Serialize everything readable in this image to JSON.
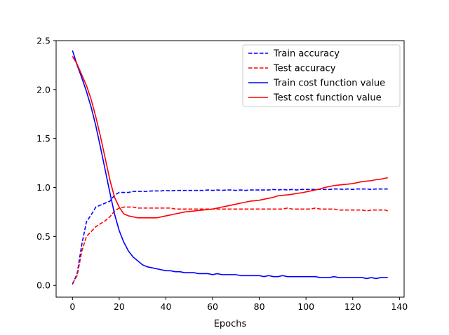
{
  "chart_data": {
    "type": "line",
    "title": "",
    "xlabel": "Epochs",
    "ylabel": "",
    "xlim": [
      -7,
      142
    ],
    "ylim": [
      -0.12,
      2.5
    ],
    "xticks": [
      0,
      20,
      40,
      60,
      80,
      100,
      120,
      140
    ],
    "xtick_labels": [
      "0",
      "20",
      "40",
      "60",
      "80",
      "100",
      "120",
      "140"
    ],
    "yticks": [
      0.0,
      0.5,
      1.0,
      1.5,
      2.0,
      2.5
    ],
    "ytick_labels": [
      "0.0",
      "0.5",
      "1.0",
      "1.5",
      "2.0",
      "2.5"
    ],
    "grid": false,
    "legend_position": "top-right",
    "x": [
      0,
      2,
      4,
      6,
      8,
      10,
      12,
      14,
      16,
      18,
      20,
      22,
      24,
      26,
      28,
      30,
      32,
      34,
      36,
      38,
      40,
      42,
      44,
      46,
      48,
      50,
      52,
      54,
      56,
      58,
      60,
      62,
      64,
      66,
      68,
      70,
      72,
      74,
      76,
      78,
      80,
      82,
      84,
      86,
      88,
      90,
      92,
      94,
      96,
      98,
      100,
      102,
      104,
      106,
      108,
      110,
      112,
      114,
      116,
      118,
      120,
      122,
      124,
      126,
      128,
      130,
      132,
      134,
      135
    ],
    "series": [
      {
        "name": "Train accuracy",
        "color": "#0000ff",
        "style": "dashed",
        "values": [
          0.01,
          0.12,
          0.42,
          0.65,
          0.72,
          0.8,
          0.82,
          0.84,
          0.86,
          0.92,
          0.95,
          0.95,
          0.95,
          0.96,
          0.96,
          0.96,
          0.96,
          0.965,
          0.965,
          0.965,
          0.97,
          0.965,
          0.97,
          0.97,
          0.97,
          0.97,
          0.97,
          0.97,
          0.97,
          0.975,
          0.97,
          0.975,
          0.97,
          0.975,
          0.975,
          0.97,
          0.975,
          0.97,
          0.975,
          0.975,
          0.975,
          0.975,
          0.975,
          0.98,
          0.975,
          0.98,
          0.975,
          0.98,
          0.975,
          0.98,
          0.98,
          0.98,
          0.98,
          0.98,
          0.98,
          0.98,
          0.985,
          0.985,
          0.98,
          0.985,
          0.98,
          0.985,
          0.985,
          0.985,
          0.98,
          0.985,
          0.985,
          0.985,
          0.985
        ]
      },
      {
        "name": "Test accuracy",
        "color": "#ff0000",
        "style": "dashed",
        "values": [
          0.02,
          0.1,
          0.35,
          0.5,
          0.55,
          0.6,
          0.63,
          0.66,
          0.7,
          0.76,
          0.79,
          0.8,
          0.8,
          0.8,
          0.79,
          0.79,
          0.79,
          0.79,
          0.79,
          0.79,
          0.79,
          0.79,
          0.78,
          0.78,
          0.78,
          0.78,
          0.78,
          0.78,
          0.78,
          0.78,
          0.78,
          0.78,
          0.78,
          0.78,
          0.78,
          0.78,
          0.78,
          0.78,
          0.78,
          0.78,
          0.78,
          0.78,
          0.78,
          0.78,
          0.78,
          0.78,
          0.79,
          0.78,
          0.78,
          0.78,
          0.78,
          0.78,
          0.79,
          0.78,
          0.78,
          0.78,
          0.78,
          0.77,
          0.77,
          0.77,
          0.77,
          0.77,
          0.77,
          0.76,
          0.77,
          0.77,
          0.77,
          0.77,
          0.76
        ]
      },
      {
        "name": "Train cost function value",
        "color": "#0000ff",
        "style": "solid",
        "values": [
          2.4,
          2.25,
          2.12,
          1.98,
          1.82,
          1.63,
          1.41,
          1.18,
          0.95,
          0.73,
          0.56,
          0.44,
          0.35,
          0.29,
          0.25,
          0.21,
          0.19,
          0.18,
          0.17,
          0.16,
          0.15,
          0.15,
          0.14,
          0.14,
          0.13,
          0.13,
          0.13,
          0.12,
          0.12,
          0.12,
          0.11,
          0.12,
          0.11,
          0.11,
          0.11,
          0.11,
          0.1,
          0.1,
          0.1,
          0.1,
          0.1,
          0.09,
          0.1,
          0.09,
          0.09,
          0.1,
          0.09,
          0.09,
          0.09,
          0.09,
          0.09,
          0.09,
          0.09,
          0.08,
          0.08,
          0.08,
          0.09,
          0.08,
          0.08,
          0.08,
          0.08,
          0.08,
          0.08,
          0.07,
          0.08,
          0.07,
          0.08,
          0.08,
          0.08
        ]
      },
      {
        "name": "Test cost function value",
        "color": "#ff0000",
        "style": "solid",
        "values": [
          2.34,
          2.26,
          2.15,
          2.04,
          1.9,
          1.72,
          1.52,
          1.3,
          1.08,
          0.9,
          0.8,
          0.73,
          0.71,
          0.7,
          0.69,
          0.69,
          0.69,
          0.69,
          0.69,
          0.7,
          0.71,
          0.72,
          0.73,
          0.74,
          0.75,
          0.755,
          0.76,
          0.765,
          0.77,
          0.775,
          0.78,
          0.79,
          0.8,
          0.81,
          0.82,
          0.83,
          0.84,
          0.85,
          0.86,
          0.865,
          0.87,
          0.88,
          0.89,
          0.9,
          0.915,
          0.92,
          0.925,
          0.93,
          0.94,
          0.945,
          0.955,
          0.965,
          0.975,
          0.985,
          1.0,
          1.01,
          1.02,
          1.025,
          1.03,
          1.035,
          1.04,
          1.05,
          1.06,
          1.065,
          1.07,
          1.08,
          1.085,
          1.095,
          1.1
        ]
      }
    ]
  }
}
